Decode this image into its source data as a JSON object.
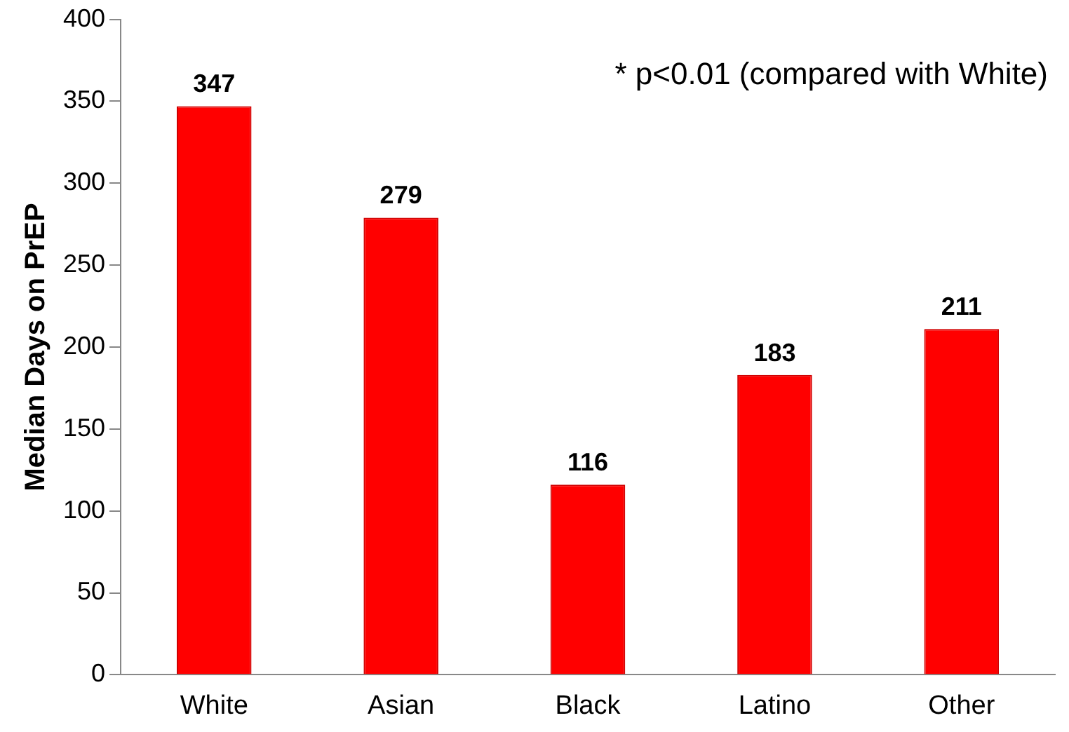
{
  "chart_data": {
    "type": "bar",
    "ylabel": "Median Days on PrEP",
    "categories": [
      "White",
      "Asian",
      "Black",
      "Latino",
      "Other"
    ],
    "values": [
      347,
      279,
      116,
      183,
      211
    ],
    "color": "#ff0000",
    "ylim": [
      0,
      400
    ],
    "yticks": [
      0,
      50,
      100,
      150,
      200,
      250,
      300,
      350,
      400
    ],
    "grid": false,
    "legend": false,
    "data_labels": true,
    "annotations": [
      "* p<0.01 (compared with White)"
    ]
  }
}
